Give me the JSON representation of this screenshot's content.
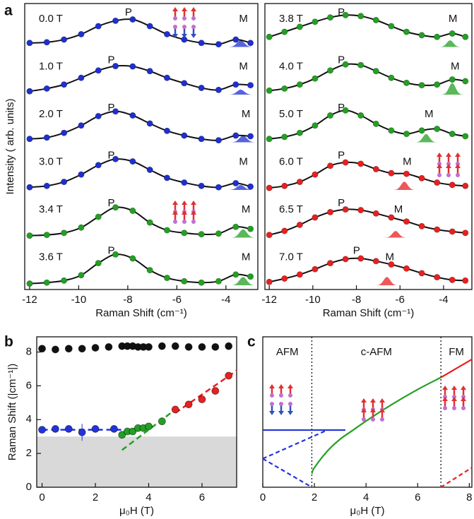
{
  "chart_data": [
    {
      "type": "spectra",
      "panel_label": "a",
      "ylabel": "Intensity ( arb. units)",
      "xlabel": "Raman Shift (cm⁻¹)",
      "xlim": [
        -12.2,
        -2.7
      ],
      "xticks": [
        -12,
        -10,
        -8,
        -6,
        -4
      ],
      "peak_labels": [
        "P",
        "M"
      ],
      "x": [
        -12,
        -11.3,
        -10.6,
        -9.9,
        -9.2,
        -8.5,
        -7.8,
        -7.1,
        -6.4,
        -5.7,
        -5.0,
        -4.3,
        -3.6,
        -3.0
      ],
      "series": [
        {
          "name": "0.0 T",
          "color": "#1f2fd0",
          "values": [
            0.12,
            0.14,
            0.22,
            0.38,
            0.62,
            0.78,
            0.82,
            0.62,
            0.38,
            0.22,
            0.12,
            0.08,
            0.22,
            0.12
          ],
          "mode_x": -3.4,
          "mode_height": 0.2
        },
        {
          "name": "1.0 T",
          "color": "#1f2fd0",
          "values": [
            0.1,
            0.18,
            0.3,
            0.5,
            0.72,
            0.85,
            0.84,
            0.7,
            0.5,
            0.34,
            0.2,
            0.14,
            0.3,
            0.28
          ],
          "mode_x": -3.4,
          "mode_height": 0.15
        },
        {
          "name": "2.0 T",
          "color": "#1f2fd0",
          "values": [
            0.1,
            0.14,
            0.28,
            0.5,
            0.78,
            0.92,
            0.8,
            0.56,
            0.34,
            0.2,
            0.1,
            0.06,
            0.2,
            0.18
          ],
          "mode_x": -3.3,
          "mode_height": 0.2
        },
        {
          "name": "3.0 T",
          "color": "#1f2fd0",
          "values": [
            0.08,
            0.12,
            0.24,
            0.46,
            0.74,
            0.92,
            0.85,
            0.6,
            0.36,
            0.22,
            0.12,
            0.08,
            0.2,
            0.1
          ],
          "mode_x": -3.4,
          "mode_height": 0.15
        },
        {
          "name": "3.4 T",
          "color": "#23a023",
          "values": [
            0.06,
            0.08,
            0.14,
            0.3,
            0.62,
            0.9,
            0.8,
            0.45,
            0.22,
            0.14,
            0.1,
            0.12,
            0.32,
            0.26
          ],
          "mode_x": -3.3,
          "mode_height": 0.25
        },
        {
          "name": "3.6 T",
          "color": "#23a023",
          "values": [
            0.05,
            0.08,
            0.14,
            0.3,
            0.66,
            0.92,
            0.8,
            0.45,
            0.22,
            0.12,
            0.08,
            0.12,
            0.32,
            0.26
          ],
          "mode_x": -3.3,
          "mode_height": 0.25
        }
      ]
    },
    {
      "type": "spectra",
      "xlabel": "Raman Shift (cm⁻¹)",
      "xlim": [
        -12.2,
        -2.7
      ],
      "xticks": [
        -12,
        -10,
        -8,
        -6,
        -4
      ],
      "peak_labels": [
        "P",
        "M"
      ],
      "x": [
        -12,
        -11.3,
        -10.6,
        -9.9,
        -9.2,
        -8.5,
        -7.8,
        -7.1,
        -6.4,
        -5.7,
        -5.0,
        -4.3,
        -3.6,
        -3.0
      ],
      "series": [
        {
          "name": "3.8 T",
          "color": "#23a023",
          "values": [
            0.3,
            0.45,
            0.6,
            0.75,
            0.88,
            0.95,
            0.92,
            0.8,
            0.62,
            0.45,
            0.35,
            0.3,
            0.4,
            0.3
          ],
          "mode_x": -3.7,
          "mode_height": 0.2
        },
        {
          "name": "4.0 T",
          "color": "#23a023",
          "values": [
            0.12,
            0.18,
            0.3,
            0.48,
            0.72,
            0.9,
            0.88,
            0.7,
            0.5,
            0.35,
            0.28,
            0.3,
            0.45,
            0.4
          ],
          "mode_x": -3.6,
          "mode_height": 0.35
        },
        {
          "name": "5.0 T",
          "color": "#23a023",
          "values": [
            0.1,
            0.16,
            0.28,
            0.5,
            0.8,
            0.95,
            0.8,
            0.55,
            0.35,
            0.25,
            0.35,
            0.4,
            0.25,
            0.18
          ],
          "mode_x": -4.8,
          "mode_height": 0.25
        },
        {
          "name": "6.0 T",
          "color": "#e82020",
          "values": [
            0.06,
            0.12,
            0.24,
            0.46,
            0.72,
            0.82,
            0.78,
            0.62,
            0.5,
            0.48,
            0.35,
            0.22,
            0.15,
            0.12
          ],
          "mode_x": -5.8,
          "mode_height": 0.25
        },
        {
          "name": "6.5 T",
          "color": "#e82020",
          "values": [
            0.08,
            0.2,
            0.38,
            0.6,
            0.76,
            0.84,
            0.82,
            0.72,
            0.6,
            0.48,
            0.34,
            0.24,
            0.18,
            0.14
          ],
          "mode_x": -6.2,
          "mode_height": 0.2
        },
        {
          "name": "7.0 T",
          "color": "#e82020",
          "values": [
            0.1,
            0.2,
            0.32,
            0.48,
            0.66,
            0.78,
            0.8,
            0.72,
            0.62,
            0.5,
            0.36,
            0.24,
            0.16,
            0.14
          ],
          "mode_x": -6.6,
          "mode_height": 0.25
        }
      ]
    },
    {
      "type": "scatter",
      "panel_label": "b",
      "xlabel": "μ₀H (T)",
      "ylabel": "Raman Shift (|cm⁻¹|)",
      "xlim": [
        -0.2,
        7.3
      ],
      "xticks": [
        0,
        2,
        4,
        6
      ],
      "ylim": [
        0,
        8.9
      ],
      "yticks": [
        0,
        2,
        4,
        6,
        8
      ],
      "shade": [
        0,
        3
      ],
      "shade_color": "#d9d9d9",
      "series": [
        {
          "color": "#111111",
          "x": [
            0,
            0.5,
            1,
            1.5,
            2,
            2.5,
            3,
            3.2,
            3.4,
            3.6,
            3.8,
            4,
            4.5,
            5,
            5.5,
            6,
            6.5,
            7
          ],
          "values": [
            8.2,
            8.15,
            8.2,
            8.2,
            8.25,
            8.3,
            8.35,
            8.35,
            8.35,
            8.3,
            8.3,
            8.3,
            8.35,
            8.35,
            8.3,
            8.3,
            8.3,
            8.35
          ]
        },
        {
          "color": "#2233dd",
          "x": [
            0,
            0.5,
            1,
            1.5,
            2,
            2.7
          ],
          "values": [
            3.4,
            3.45,
            3.45,
            3.25,
            3.45,
            3.45
          ],
          "errors": [
            0.1,
            0.1,
            0.1,
            0.5,
            0.1,
            0.1
          ]
        },
        {
          "color": "#23a023",
          "x": [
            3.0,
            3.2,
            3.4,
            3.6,
            3.8,
            4.0,
            4.5
          ],
          "values": [
            3.1,
            3.3,
            3.3,
            3.5,
            3.5,
            3.6,
            3.9
          ]
        },
        {
          "color": "#e82020",
          "x": [
            5.0,
            5.5,
            6.0,
            6.5,
            7.0
          ],
          "values": [
            4.6,
            4.9,
            5.2,
            5.7,
            6.6
          ]
        }
      ],
      "fits": [
        {
          "color": "#2233dd",
          "x": [
            0,
            3
          ],
          "values": [
            3.4,
            3.4
          ]
        },
        {
          "color": "#23a023",
          "x": [
            3.0,
            5.0
          ],
          "values": [
            2.2,
            4.6
          ]
        },
        {
          "color": "#e82020",
          "x": [
            5.0,
            7.3
          ],
          "values": [
            4.4,
            6.9
          ]
        }
      ]
    },
    {
      "type": "line",
      "panel_label": "c",
      "xlabel": "μ₀H (T)",
      "xlim": [
        0,
        8.1
      ],
      "xticks": [
        0,
        2,
        4,
        6,
        8
      ],
      "ylim": [
        0,
        10
      ],
      "boundaries": [
        1.9,
        6.9
      ],
      "regions": [
        "AFM",
        "c-AFM",
        "FM"
      ],
      "series": [
        {
          "color": "#2233dd",
          "dashed": false,
          "x": [
            0,
            3.2
          ],
          "values": [
            3.8,
            3.8
          ]
        },
        {
          "color": "#2233dd",
          "dashed": true,
          "x": [
            0,
            2.5
          ],
          "values": [
            1.9,
            3.8
          ]
        },
        {
          "color": "#2233dd",
          "dashed": true,
          "x": [
            0,
            1.9
          ],
          "values": [
            1.9,
            0
          ]
        },
        {
          "color": "#23a023",
          "dashed": false,
          "x": [
            1.9,
            2,
            2.5,
            3,
            3.5,
            4,
            5,
            6,
            6.9
          ],
          "values": [
            0.9,
            1.3,
            2.4,
            3.2,
            3.8,
            4.4,
            5.5,
            6.5,
            7.3
          ]
        },
        {
          "color": "#e82020",
          "dashed": false,
          "x": [
            6.9,
            8.1
          ],
          "values": [
            7.3,
            8.5
          ]
        },
        {
          "color": "#e82020",
          "dashed": true,
          "x": [
            6.9,
            8.1
          ],
          "values": [
            0,
            1.3
          ]
        }
      ]
    }
  ]
}
